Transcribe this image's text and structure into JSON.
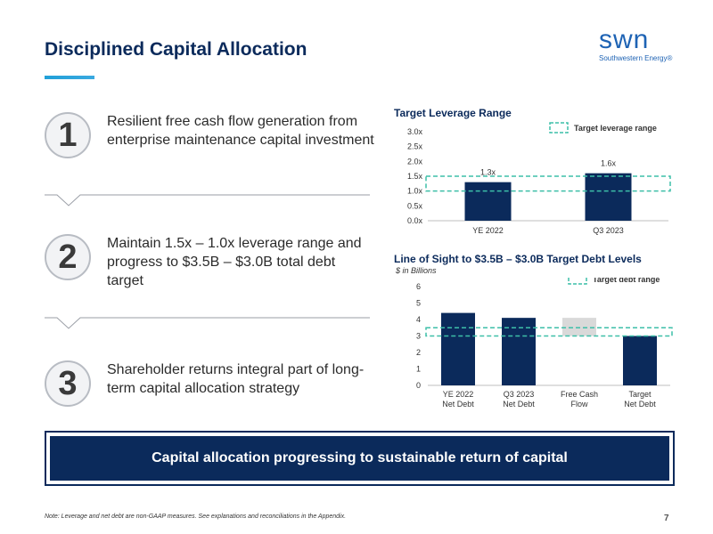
{
  "page": {
    "title": "Disciplined Capital Allocation",
    "logo_word": "swn",
    "logo_sub": "Southwestern Energy®",
    "banner": "Capital allocation progressing to sustainable return of capital",
    "note": "Note: Leverage and net debt are non-GAAP measures. See explanations and reconciliations in the Appendix.",
    "page_number": "7"
  },
  "points": [
    {
      "number": "1",
      "text": "Resilient free cash flow generation from enterprise maintenance capital investment"
    },
    {
      "number": "2",
      "text": "Maintain 1.5x – 1.0x leverage range and progress to $3.5B – $3.0B total debt target"
    },
    {
      "number": "3",
      "text": "Shareholder returns integral part of long-term capital allocation strategy"
    }
  ],
  "colors": {
    "navy": "#0b2a5b",
    "accent_blue": "#21a0d8",
    "range_teal": "#3dbfa8",
    "bridge_gray": "#d9d9d9"
  },
  "chart_data": [
    {
      "type": "bar",
      "title": "Target Leverage Range",
      "categories": [
        "YE 2022",
        "Q3 2023"
      ],
      "values": [
        1.3,
        1.6
      ],
      "data_labels": [
        "1.3x",
        "1.6x"
      ],
      "ylim": [
        0,
        3.0
      ],
      "yticks": [
        "0.0x",
        "0.5x",
        "1.0x",
        "1.5x",
        "2.0x",
        "2.5x",
        "3.0x"
      ],
      "target_range": [
        1.0,
        1.5
      ],
      "legend": "Target leverage range",
      "legend_position": "top-right"
    },
    {
      "type": "bar",
      "title": "Line of Sight to $3.5B – $3.0B Target Debt Levels",
      "subtitle": "$ in Billions",
      "categories": [
        "YE 2022 Net Debt",
        "Q3 2023 Net Debt",
        "Free Cash Flow",
        "Target Net Debt"
      ],
      "category_lines": [
        [
          "YE 2022",
          "Net Debt"
        ],
        [
          "Q3 2023",
          "Net Debt"
        ],
        [
          "Free Cash",
          "Flow"
        ],
        [
          "Target",
          "Net Debt"
        ]
      ],
      "bars": [
        {
          "base": 0,
          "top": 4.4,
          "kind": "total"
        },
        {
          "base": 0,
          "top": 4.1,
          "kind": "total"
        },
        {
          "base": 3.0,
          "top": 4.1,
          "kind": "bridge"
        },
        {
          "base": 0,
          "top": 3.0,
          "kind": "total"
        }
      ],
      "ylim": [
        0,
        6
      ],
      "yticks": [
        "0",
        "1",
        "2",
        "3",
        "4",
        "5",
        "6"
      ],
      "target_range": [
        3.0,
        3.5
      ],
      "legend": "Target debt range",
      "legend_position": "top-right"
    }
  ]
}
